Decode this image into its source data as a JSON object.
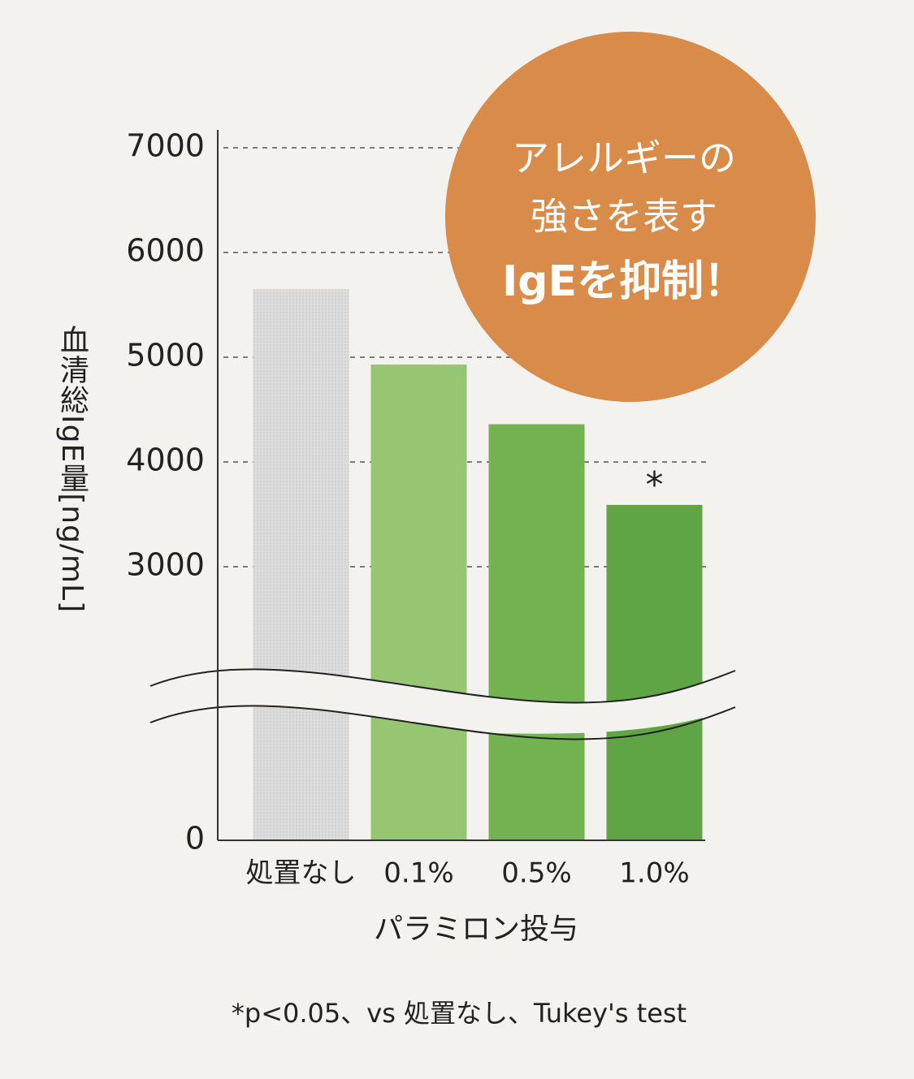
{
  "chart_data": {
    "type": "bar",
    "y_label": "血清総IgE量[ng/mL]",
    "x_label": "パラミロン投与",
    "footnote": "*p<0.05、vs 処置なし、Tukey's test",
    "annotation": [
      "アレルギーの",
      "強さを表す",
      "IgEを抑制！"
    ],
    "categories": [
      "処置なし",
      "0.1%",
      "0.5%",
      "1.0%"
    ],
    "values": [
      5650,
      4930,
      4360,
      3590
    ],
    "colors": [
      "#dcdcdc",
      "#96c671",
      "#72b250",
      "#60a545"
    ],
    "significance": [
      null,
      null,
      null,
      "*"
    ],
    "ylim": [
      0,
      7000
    ],
    "yticks": [
      0,
      3000,
      4000,
      5000,
      6000,
      7000
    ],
    "axis_break": true,
    "grid": true
  }
}
